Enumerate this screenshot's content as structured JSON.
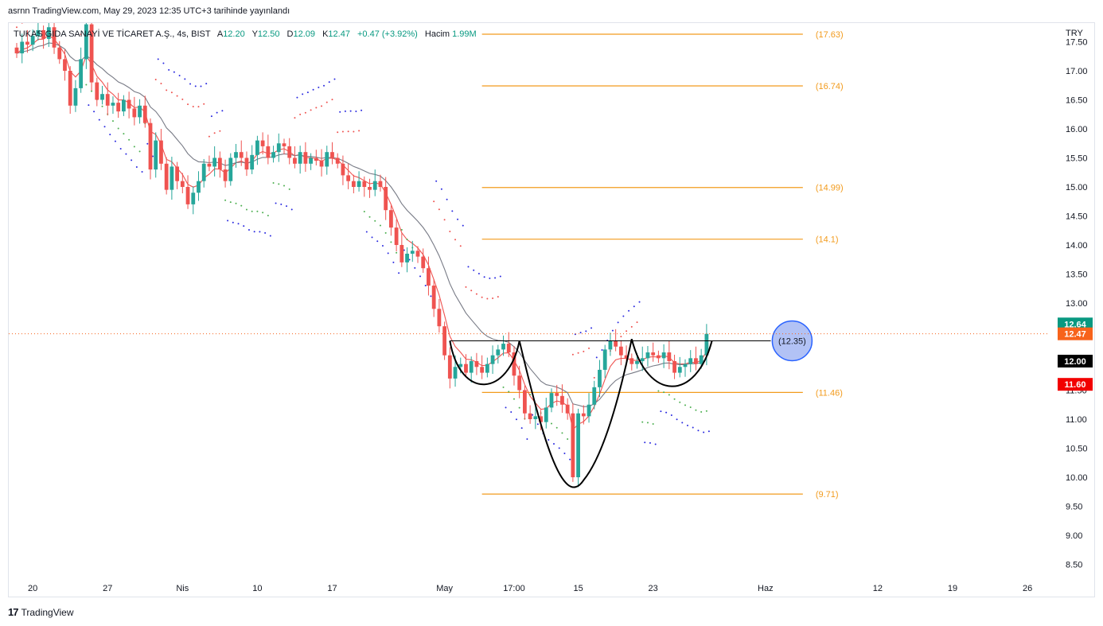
{
  "publish_line": "asrnn TradingView.com, May 29, 2023 12:35 UTC+3 tarihinde yayınlandı",
  "branding": {
    "logo": "17",
    "name": "TradingView"
  },
  "colors": {
    "up": "#26a69a",
    "down": "#ef5350",
    "fib": "#f29b1d",
    "ema_fast": "#ef5350",
    "ema_slow": "#787b86",
    "sar_green": "#4caf50",
    "sar_red": "#ef5350",
    "sar_blue": "#2a2ae0"
  },
  "chart_data": {
    "type": "candlestick",
    "legend": {
      "symbol": "TUKAS GIDA SANAYİ VE TİCARET A.Ş., 4s, BIST",
      "o_label": "A",
      "o_value": "12.20",
      "h_label": "Y",
      "h_value": "12.50",
      "l_label": "D",
      "l_value": "12.09",
      "c_label": "K",
      "c_value": "12.47",
      "change": "+0.47 (+3.92%)",
      "volume_label": "Hacim",
      "volume_value": "1.99M"
    },
    "currency": "TRY",
    "y_ticks": [
      "17.50",
      "17.00",
      "16.50",
      "16.00",
      "15.50",
      "15.00",
      "14.50",
      "14.00",
      "13.50",
      "13.00",
      "12.50",
      "12.00",
      "11.50",
      "11.00",
      "10.50",
      "10.00",
      "9.50",
      "9.00",
      "8.50"
    ],
    "y_range": [
      8.3,
      17.7
    ],
    "x_ticks": [
      {
        "label": "20",
        "i": 3
      },
      {
        "label": "27",
        "i": 17
      },
      {
        "label": "Nis",
        "i": 31
      },
      {
        "label": "10",
        "i": 45
      },
      {
        "label": "17",
        "i": 59
      },
      {
        "label": "May",
        "i": 80
      },
      {
        "label": "17:00",
        "i": 93
      },
      {
        "label": "15",
        "i": 105
      },
      {
        "label": "23",
        "i": 119
      },
      {
        "label": "Haz",
        "i": 140
      },
      {
        "label": "12",
        "i": 161
      },
      {
        "label": "19",
        "i": 175
      },
      {
        "label": "26",
        "i": 189
      }
    ],
    "fib_levels": [
      {
        "label": "(17.63)",
        "value": 17.63
      },
      {
        "label": "(16.74)",
        "value": 16.74
      },
      {
        "label": "(14.99)",
        "value": 14.99
      },
      {
        "label": "(14.1)",
        "value": 14.1
      },
      {
        "label": "(11.46)",
        "value": 11.46
      },
      {
        "label": "(9.71)",
        "value": 9.71
      }
    ],
    "neckline": {
      "value": 12.35,
      "label": "(12.35)",
      "from_i": 81,
      "to_i": 141
    },
    "price_badges": [
      {
        "label": "12.64",
        "value": 12.64,
        "color": "#089981"
      },
      {
        "label": "12.47",
        "value": 12.47,
        "color": "#f7631b"
      },
      {
        "label": "12.00",
        "value": 12.0,
        "color": "#000000"
      },
      {
        "label": "11.60",
        "value": 11.6,
        "color": "#f20000"
      }
    ],
    "last_close": 12.47,
    "closes": [
      17.3,
      17.5,
      17.45,
      17.6,
      17.7,
      17.55,
      17.75,
      17.4,
      17.2,
      17.0,
      16.4,
      16.7,
      17.2,
      17.8,
      16.8,
      16.5,
      16.6,
      16.4,
      16.45,
      16.3,
      16.5,
      16.35,
      16.2,
      16.4,
      16.1,
      15.3,
      15.8,
      15.4,
      14.95,
      15.35,
      15.1,
      15.0,
      14.7,
      14.9,
      15.1,
      15.4,
      15.35,
      15.5,
      15.3,
      15.1,
      15.5,
      15.6,
      15.5,
      15.3,
      15.55,
      15.8,
      15.7,
      15.5,
      15.6,
      15.75,
      15.7,
      15.5,
      15.4,
      15.6,
      15.4,
      15.5,
      15.45,
      15.35,
      15.6,
      15.5,
      15.4,
      15.2,
      15.1,
      15.0,
      15.1,
      15.0,
      14.95,
      15.1,
      15.0,
      14.6,
      14.3,
      14.0,
      13.7,
      13.85,
      13.9,
      13.8,
      13.6,
      13.3,
      12.9,
      12.6,
      12.1,
      11.7,
      11.9,
      11.95,
      11.8,
      12.0,
      11.9,
      11.8,
      11.95,
      12.1,
      12.2,
      12.3,
      12.15,
      11.75,
      11.5,
      11.1,
      11.0,
      11.05,
      10.95,
      11.2,
      11.45,
      11.4,
      11.25,
      11.1,
      10.0,
      11.1,
      11.05,
      11.25,
      11.55,
      11.85,
      12.2,
      12.35,
      12.25,
      12.1,
      12.05,
      11.95,
      12.0,
      12.05,
      12.15,
      12.1,
      12.05,
      12.15,
      12.0,
      11.8,
      11.9,
      11.95,
      12.05,
      11.95,
      12.1,
      12.47
    ],
    "pattern": "inverse-head-and-shoulders"
  }
}
